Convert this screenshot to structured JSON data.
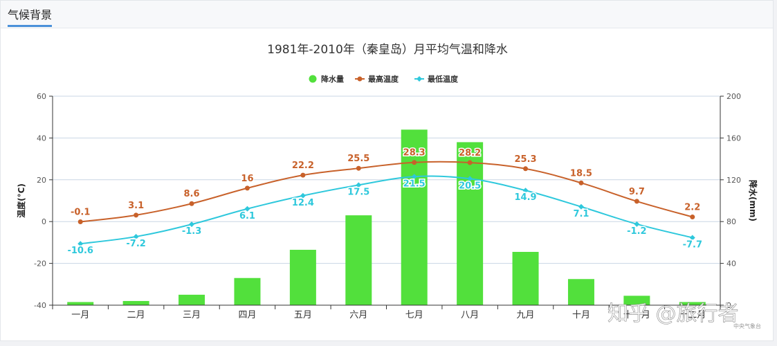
{
  "panel": {
    "tab_label": "气候背景"
  },
  "chart_data": {
    "type": "bar+line",
    "title": "1981年-2010年（秦皇岛）月平均气温和降水",
    "categories": [
      "一月",
      "二月",
      "三月",
      "四月",
      "五月",
      "六月",
      "七月",
      "八月",
      "九月",
      "十月",
      "十一月",
      "十二月"
    ],
    "series": [
      {
        "name": "降水量",
        "type": "bar",
        "axis": "right",
        "color": "#52e03c",
        "values": [
          3,
          4,
          10,
          26,
          53,
          86,
          168,
          156,
          51,
          25,
          9,
          3
        ]
      },
      {
        "name": "最高温度",
        "type": "line",
        "axis": "left",
        "color": "#c8612a",
        "values": [
          -0.1,
          3.1,
          8.6,
          16,
          22.2,
          25.5,
          28.3,
          28.2,
          25.3,
          18.5,
          9.7,
          2.2
        ]
      },
      {
        "name": "最低温度",
        "type": "line",
        "axis": "left",
        "color": "#2ec8dc",
        "values": [
          -10.6,
          -7.2,
          -1.3,
          6.1,
          12.4,
          17.5,
          21.5,
          20.5,
          14.9,
          7.1,
          -1.2,
          -7.7
        ]
      }
    ],
    "ylabel_left": "温度(°C)",
    "ylabel_right": "降水(mm)",
    "ylim_left": [
      -40,
      60
    ],
    "yticks_left": [
      -40,
      -20,
      0,
      20,
      40,
      60
    ],
    "ylim_right": [
      0,
      200
    ],
    "yticks_right": [
      0,
      40,
      80,
      120,
      160,
      200
    ],
    "grid": true,
    "legend_position": "top-center"
  },
  "watermark": {
    "text": "知乎 @旅行者",
    "credit": "中央气象台"
  }
}
